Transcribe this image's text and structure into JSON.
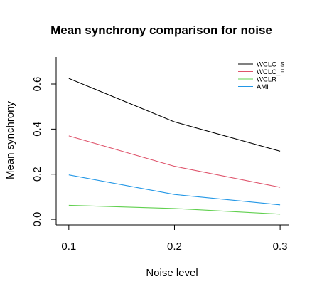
{
  "chart_data": {
    "type": "line",
    "title": "Mean synchrony comparison for noise",
    "xlabel": "Noise level",
    "ylabel": "Mean synchrony",
    "x": [
      0.1,
      0.2,
      0.3
    ],
    "x_tick_labels": [
      "0.1",
      "0.2",
      "0.3"
    ],
    "y_ticks": [
      0.0,
      0.2,
      0.4,
      0.6
    ],
    "y_tick_labels": [
      "0.0",
      "0.2",
      "0.4",
      "0.6"
    ],
    "xlim": [
      0.088,
      0.308
    ],
    "ylim": [
      -0.025,
      0.72
    ],
    "grid": false,
    "legend_position": "top-right",
    "series": [
      {
        "name": "WCLC_S",
        "color": "#000000",
        "values": [
          0.625,
          0.432,
          0.302
        ]
      },
      {
        "name": "WCLC_F",
        "color": "#DF536B",
        "values": [
          0.37,
          0.235,
          0.142
        ]
      },
      {
        "name": "WCLR",
        "color": "#61D04F",
        "values": [
          0.062,
          0.048,
          0.023
        ]
      },
      {
        "name": "AMI",
        "color": "#2297E6",
        "values": [
          0.197,
          0.11,
          0.064
        ]
      }
    ]
  }
}
